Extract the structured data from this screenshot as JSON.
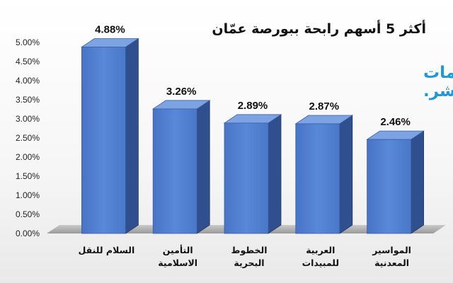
{
  "chart_data": {
    "type": "bar",
    "title": "أكثر 5 أسهم رابحة ببورصة عمّان",
    "categories": [
      "السلام للنقل",
      "التأمين الاسلامية",
      "الخطوط البحرية",
      "العربية للمبيدات",
      "المواسير المعدنية"
    ],
    "values": [
      4.88,
      3.26,
      2.89,
      2.87,
      2.46
    ],
    "value_labels": [
      "4.88%",
      "3.26%",
      "2.89%",
      "2.87%",
      "2.46%"
    ],
    "ylim": [
      0,
      5
    ],
    "yticks": [
      "0.00%",
      "0.50%",
      "1.00%",
      "1.50%",
      "2.00%",
      "2.50%",
      "3.00%",
      "3.50%",
      "4.00%",
      "4.50%",
      "5.00%"
    ],
    "xlabel": "",
    "ylabel": "",
    "grid": false,
    "style": "3d",
    "bar_color": "#4f7fd0"
  },
  "logo": {
    "line1": "معلومات",
    "line2": "مباشر."
  }
}
